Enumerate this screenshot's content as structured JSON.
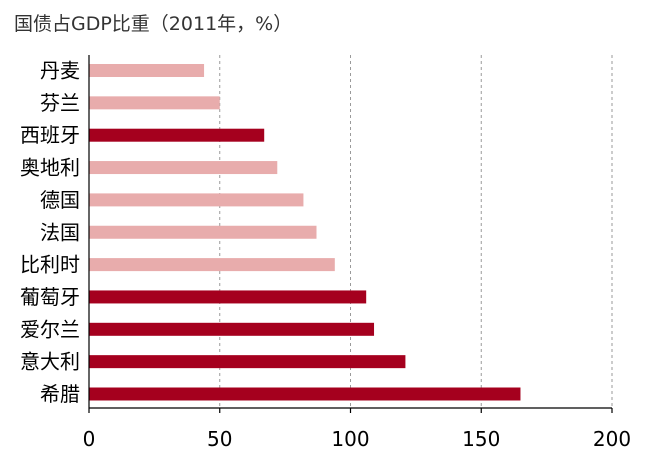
{
  "chart_data": {
    "type": "bar",
    "orientation": "horizontal",
    "title": "国债占GDP比重（2011年，%）",
    "xlabel": "",
    "ylabel": "",
    "xlim": [
      0,
      200
    ],
    "ticks": [
      0,
      50,
      100,
      150,
      200
    ],
    "grid": "vertical dashed",
    "legend": "none",
    "categories": [
      "丹麦",
      "芬兰",
      "西班牙",
      "奥地利",
      "德国",
      "法国",
      "比利时",
      "葡萄牙",
      "爱尔兰",
      "意大利",
      "希腊"
    ],
    "values": [
      44,
      50,
      67,
      72,
      82,
      87,
      94,
      106,
      109,
      121,
      165
    ],
    "highlighted": [
      false,
      false,
      true,
      false,
      false,
      false,
      false,
      true,
      true,
      true,
      true
    ],
    "colors": {
      "highlight": "#a5001e",
      "normal": "#e8acac"
    }
  }
}
